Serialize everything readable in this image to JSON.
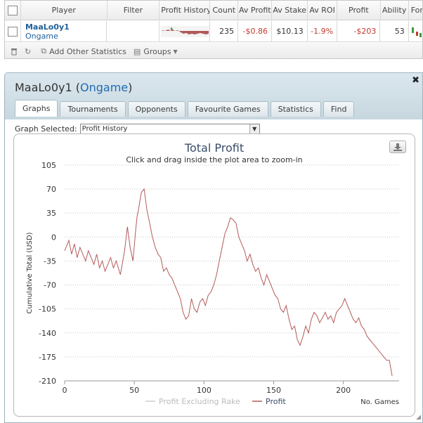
{
  "stats_table": {
    "headers": {
      "player": "Player",
      "filter": "Filter",
      "profit_history": "Profit History",
      "count": "Count",
      "av_profit": "Av Profit",
      "av_stake": "Av Stake",
      "av_roi": "Av ROI",
      "profit": "Profit",
      "ability": "Ability",
      "form": "Form"
    },
    "row": {
      "player_name": "MaaLo0y1",
      "site": "Ongame",
      "count": "235",
      "av_profit": "-$0.86",
      "av_stake": "$10.13",
      "av_roi": "-1.9%",
      "profit": "-$203",
      "ability": "53"
    },
    "footer": {
      "add_stats": "Add Other Statistics",
      "groups": "Groups"
    }
  },
  "panel": {
    "player_name": "MaaLo0y1",
    "site": "Ongame",
    "tabs": [
      "Graphs",
      "Tournaments",
      "Opponents",
      "Favourite Games",
      "Statistics",
      "Find"
    ],
    "active_tab": "Graphs",
    "graph_selected_label": "Graph Selected:",
    "graph_selected_value": "Profit History"
  },
  "chart_data": {
    "type": "line",
    "title": "Total Profit",
    "subtitle": "Click and drag inside the plot area to zoom-in",
    "ylabel": "Cumulative Total (USD)",
    "xlabel": "No. Games",
    "ylim": [
      -210,
      105
    ],
    "xlim": [
      0,
      240
    ],
    "y_ticks": [
      105,
      70,
      35,
      0,
      -35,
      -70,
      -105,
      -140,
      -175,
      -210
    ],
    "x_ticks": [
      0,
      50,
      100,
      150,
      200
    ],
    "grid": true,
    "legend_position": "bottom",
    "legend": [
      "Profit Excluding Rake",
      "Profit"
    ],
    "series": [
      {
        "name": "Profit Excluding Rake",
        "color": "#cccccc",
        "visible": false,
        "x": [],
        "y": []
      },
      {
        "name": "Profit",
        "color": "#b55a5a",
        "visible": true,
        "x": [
          0,
          3,
          5,
          7,
          9,
          11,
          13,
          15,
          17,
          19,
          21,
          23,
          25,
          27,
          29,
          31,
          33,
          35,
          37,
          40,
          43,
          45,
          47,
          49,
          51,
          52,
          53,
          55,
          57,
          59,
          61,
          63,
          65,
          67,
          69,
          71,
          73,
          75,
          77,
          79,
          81,
          83,
          85,
          87,
          89,
          91,
          93,
          95,
          97,
          99,
          101,
          103,
          105,
          107,
          109,
          111,
          113,
          115,
          117,
          119,
          121,
          123,
          124,
          125,
          127,
          129,
          131,
          133,
          135,
          137,
          139,
          141,
          143,
          145,
          147,
          149,
          151,
          153,
          155,
          157,
          159,
          161,
          163,
          165,
          167,
          169,
          171,
          173,
          175,
          177,
          179,
          181,
          183,
          185,
          187,
          189,
          191,
          193,
          195,
          197,
          199,
          201,
          203,
          205,
          207,
          209,
          211,
          213,
          215,
          217,
          219,
          221,
          223,
          225,
          227,
          229,
          231,
          233,
          235
        ],
        "y": [
          -20,
          -5,
          -25,
          -10,
          -30,
          -15,
          -25,
          -35,
          -20,
          -30,
          -40,
          -25,
          -45,
          -35,
          -50,
          -40,
          -30,
          -45,
          -35,
          -55,
          -20,
          15,
          -15,
          -35,
          10,
          30,
          40,
          65,
          70,
          40,
          20,
          0,
          -15,
          -25,
          -30,
          -50,
          -45,
          -55,
          -60,
          -70,
          -80,
          -90,
          -110,
          -120,
          -115,
          -90,
          -105,
          -110,
          -95,
          -90,
          -100,
          -85,
          -80,
          -70,
          -55,
          -35,
          -15,
          5,
          15,
          28,
          25,
          20,
          10,
          0,
          -10,
          -20,
          -35,
          -25,
          -40,
          -50,
          -45,
          -60,
          -70,
          -55,
          -65,
          -75,
          -85,
          -90,
          -105,
          -110,
          -100,
          -120,
          -135,
          -130,
          -150,
          -158,
          -145,
          -130,
          -140,
          -120,
          -110,
          -115,
          -125,
          -118,
          -110,
          -120,
          -115,
          -125,
          -110,
          -105,
          -100,
          -90,
          -100,
          -110,
          -120,
          -125,
          -118,
          -130,
          -135,
          -145,
          -150,
          -155,
          -160,
          -165,
          -170,
          -175,
          -180,
          -180,
          -203
        ]
      }
    ]
  },
  "colors": {
    "accent": "#1e6bb0",
    "negative": "#c0392b",
    "panel_header": "#c7d7df",
    "profit_line": "#b55a5a",
    "grid": "#cccccc"
  },
  "icons": {
    "trash": "trash-icon",
    "refresh": "refresh-icon",
    "add_stats": "add-stats-icon",
    "groups": "groups-icon",
    "download": "download-icon",
    "close": "close-icon"
  }
}
